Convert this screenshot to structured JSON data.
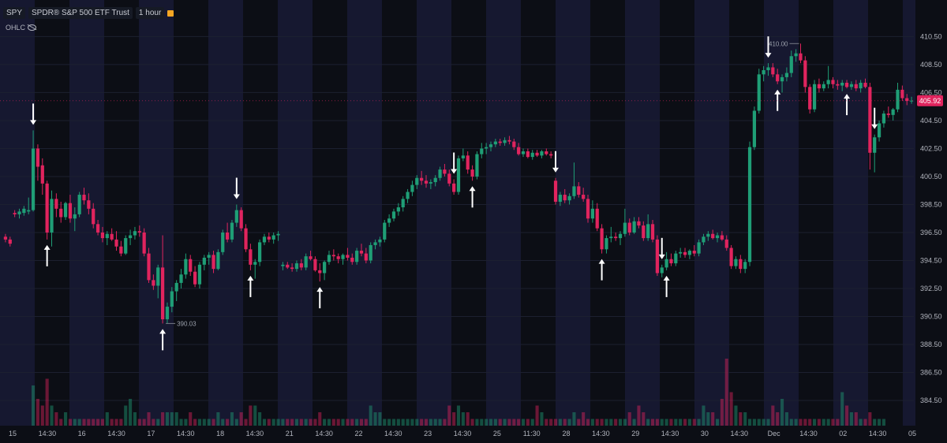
{
  "header": {
    "symbol": "SPY",
    "name": "SPDR® S&P 500 ETF Trust",
    "interval": "1 hour",
    "indicator": "OHLC"
  },
  "chart_data": {
    "type": "candlestick",
    "ylim": [
      382.7,
      412.1
    ],
    "y_ticks": [
      410.5,
      408.5,
      406.5,
      404.5,
      402.5,
      400.5,
      398.5,
      396.5,
      394.5,
      392.5,
      390.5,
      388.5,
      386.5,
      384.5
    ],
    "x_ticks": [
      "15",
      "14:30",
      "16",
      "14:30",
      "17",
      "14:30",
      "18",
      "14:30",
      "21",
      "14:30",
      "22",
      "14:30",
      "23",
      "14:30",
      "25",
      "11:30",
      "28",
      "14:30",
      "29",
      "14:30",
      "30",
      "14:30",
      "Dec",
      "14:30",
      "02",
      "14:30",
      "05"
    ],
    "last_price": "405.92",
    "high_label": "410.00",
    "low_label": "390.03",
    "colors": {
      "up": "#1f9e76",
      "down": "#e0245e",
      "bg": "#0c0e15",
      "session": "#1a1c3a",
      "arrow": "#ffffff",
      "price_tag": "#e0245e"
    },
    "candles": [
      [
        396.2,
        396.4,
        395.8,
        396.0
      ],
      [
        396.0,
        396.2,
        395.5,
        395.7
      ],
      [
        397.9,
        398.1,
        397.6,
        397.8
      ],
      [
        397.8,
        398.2,
        397.5,
        398.0
      ],
      [
        397.9,
        398.4,
        397.7,
        398.2
      ],
      [
        398.0,
        399.0,
        397.8,
        398.1
      ],
      [
        398.1,
        403.8,
        398.0,
        402.5
      ],
      [
        402.5,
        402.8,
        400.2,
        401.2
      ],
      [
        401.3,
        401.8,
        399.2,
        400.0
      ],
      [
        400.0,
        400.2,
        396.0,
        396.5
      ],
      [
        396.5,
        399.5,
        395.5,
        398.9
      ],
      [
        398.9,
        399.3,
        397.6,
        398.2
      ],
      [
        398.2,
        398.7,
        397.2,
        397.6
      ],
      [
        397.6,
        398.7,
        397.4,
        398.6
      ],
      [
        398.6,
        399.2,
        397.2,
        397.5
      ],
      [
        397.5,
        398.3,
        396.6,
        397.8
      ],
      [
        397.8,
        399.4,
        397.6,
        399.2
      ],
      [
        399.2,
        399.7,
        398.5,
        398.8
      ],
      [
        398.8,
        399.3,
        397.8,
        398.2
      ],
      [
        398.2,
        398.6,
        396.8,
        397.1
      ],
      [
        397.1,
        397.4,
        396.3,
        396.5
      ],
      [
        396.5,
        396.9,
        395.8,
        396.1
      ],
      [
        396.1,
        396.6,
        395.6,
        396.4
      ],
      [
        396.4,
        396.8,
        395.9,
        396.0
      ],
      [
        396.0,
        396.6,
        395.2,
        395.5
      ],
      [
        395.5,
        395.9,
        394.8,
        395.0
      ],
      [
        395.0,
        396.3,
        394.9,
        396.1
      ],
      [
        396.1,
        396.7,
        395.6,
        396.3
      ],
      [
        396.3,
        396.9,
        396.0,
        396.6
      ],
      [
        396.6,
        397.0,
        396.2,
        396.5
      ],
      [
        396.5,
        396.8,
        394.8,
        395.0
      ],
      [
        395.0,
        395.4,
        392.9,
        393.1
      ],
      [
        393.1,
        393.5,
        392.4,
        392.7
      ],
      [
        392.7,
        394.2,
        391.8,
        394.0
      ],
      [
        394.0,
        396.3,
        390.0,
        390.3
      ],
      [
        390.3,
        391.5,
        390.0,
        391.2
      ],
      [
        391.2,
        392.6,
        390.8,
        392.3
      ],
      [
        392.3,
        393.1,
        391.6,
        392.9
      ],
      [
        392.9,
        393.9,
        392.5,
        393.5
      ],
      [
        393.5,
        395.0,
        393.2,
        394.6
      ],
      [
        394.6,
        394.9,
        393.4,
        393.7
      ],
      [
        393.7,
        394.1,
        392.6,
        392.8
      ],
      [
        392.8,
        394.4,
        392.5,
        394.2
      ],
      [
        394.2,
        394.9,
        393.8,
        394.7
      ],
      [
        394.7,
        395.1,
        394.2,
        394.9
      ],
      [
        394.9,
        395.2,
        393.6,
        393.9
      ],
      [
        393.9,
        395.3,
        393.8,
        395.1
      ],
      [
        395.1,
        396.7,
        394.9,
        396.5
      ],
      [
        396.5,
        397.2,
        395.8,
        396.0
      ],
      [
        396.0,
        397.4,
        395.8,
        397.2
      ],
      [
        397.2,
        398.5,
        396.9,
        398.1
      ],
      [
        398.1,
        398.3,
        396.6,
        396.8
      ],
      [
        396.8,
        397.1,
        395.1,
        395.3
      ],
      [
        395.3,
        395.7,
        393.8,
        394.2
      ],
      [
        394.2,
        394.6,
        393.2,
        394.4
      ],
      [
        394.4,
        396.0,
        394.1,
        395.8
      ],
      [
        395.8,
        396.4,
        395.6,
        396.2
      ],
      [
        396.2,
        396.5,
        395.8,
        396.0
      ],
      [
        396.0,
        396.5,
        395.7,
        396.3
      ],
      [
        396.3,
        396.6,
        395.9,
        396.4
      ],
      [
        394.1,
        394.4,
        393.8,
        394.2
      ],
      [
        394.2,
        394.4,
        393.9,
        394.0
      ],
      [
        394.0,
        394.3,
        393.7,
        393.9
      ],
      [
        393.9,
        394.5,
        393.7,
        394.3
      ],
      [
        394.3,
        394.6,
        393.8,
        394.0
      ],
      [
        394.0,
        395.0,
        393.8,
        394.8
      ],
      [
        394.8,
        395.2,
        394.5,
        394.6
      ],
      [
        394.6,
        394.8,
        393.7,
        393.8
      ],
      [
        393.8,
        394.3,
        393.0,
        393.6
      ],
      [
        393.6,
        394.5,
        393.1,
        394.4
      ],
      [
        394.4,
        395.2,
        394.2,
        394.9
      ],
      [
        394.9,
        395.3,
        394.5,
        394.8
      ],
      [
        394.8,
        395.0,
        394.3,
        394.6
      ],
      [
        394.6,
        395.0,
        394.2,
        394.9
      ],
      [
        394.9,
        395.4,
        394.5,
        394.7
      ],
      [
        394.7,
        395.0,
        394.2,
        394.4
      ],
      [
        394.4,
        395.4,
        394.2,
        395.2
      ],
      [
        395.2,
        395.7,
        394.8,
        395.0
      ],
      [
        395.0,
        395.4,
        394.3,
        394.5
      ],
      [
        394.5,
        395.8,
        394.3,
        395.6
      ],
      [
        395.6,
        396.0,
        395.3,
        395.8
      ],
      [
        395.8,
        396.2,
        395.5,
        396.0
      ],
      [
        396.0,
        397.4,
        395.8,
        397.2
      ],
      [
        397.2,
        397.8,
        396.9,
        397.5
      ],
      [
        397.5,
        398.2,
        397.3,
        398.0
      ],
      [
        398.0,
        398.6,
        397.7,
        398.3
      ],
      [
        398.3,
        399.1,
        398.0,
        398.9
      ],
      [
        398.9,
        399.6,
        398.6,
        399.4
      ],
      [
        399.4,
        400.2,
        399.1,
        399.9
      ],
      [
        399.9,
        400.6,
        399.6,
        400.4
      ],
      [
        400.4,
        400.9,
        399.9,
        400.2
      ],
      [
        400.2,
        400.6,
        399.7,
        400.0
      ],
      [
        400.0,
        400.3,
        399.6,
        400.1
      ],
      [
        400.1,
        400.6,
        399.8,
        400.4
      ],
      [
        400.4,
        401.2,
        400.2,
        401.0
      ],
      [
        401.0,
        401.4,
        400.5,
        400.7
      ],
      [
        400.7,
        401.0,
        399.8,
        400.0
      ],
      [
        400.0,
        400.3,
        399.2,
        399.4
      ],
      [
        399.4,
        402.0,
        399.2,
        401.8
      ],
      [
        401.8,
        402.5,
        401.6,
        402.0
      ],
      [
        402.0,
        402.3,
        400.7,
        401.0
      ],
      [
        401.0,
        401.3,
        400.2,
        400.5
      ],
      [
        400.5,
        402.3,
        400.3,
        402.1
      ],
      [
        402.1,
        402.9,
        401.8,
        402.5
      ],
      [
        402.5,
        402.9,
        402.1,
        402.6
      ],
      [
        402.6,
        403.0,
        402.3,
        402.8
      ],
      [
        402.8,
        403.2,
        402.6,
        403.0
      ],
      [
        403.0,
        403.2,
        402.7,
        402.9
      ],
      [
        402.9,
        403.3,
        402.7,
        403.1
      ],
      [
        403.1,
        403.4,
        402.8,
        403.0
      ],
      [
        403.0,
        403.2,
        402.4,
        402.6
      ],
      [
        402.6,
        402.9,
        402.0,
        402.1
      ],
      [
        402.1,
        402.5,
        401.9,
        402.3
      ],
      [
        402.3,
        402.5,
        401.8,
        401.9
      ],
      [
        401.9,
        402.4,
        401.7,
        402.2
      ],
      [
        402.2,
        402.4,
        401.9,
        402.0
      ],
      [
        402.0,
        402.4,
        401.8,
        402.3
      ],
      [
        402.3,
        402.5,
        402.0,
        402.1
      ],
      [
        402.1,
        402.3,
        401.8,
        402.0
      ],
      [
        400.2,
        400.4,
        398.5,
        398.7
      ],
      [
        398.7,
        399.4,
        398.4,
        399.2
      ],
      [
        399.2,
        399.6,
        398.6,
        398.8
      ],
      [
        398.8,
        399.3,
        398.5,
        399.1
      ],
      [
        399.1,
        401.5,
        398.9,
        399.8
      ],
      [
        399.8,
        400.1,
        399.0,
        399.2
      ],
      [
        399.2,
        399.7,
        398.7,
        398.9
      ],
      [
        398.9,
        399.2,
        397.2,
        397.5
      ],
      [
        397.5,
        398.8,
        397.2,
        398.2
      ],
      [
        398.2,
        398.6,
        396.6,
        396.8
      ],
      [
        396.8,
        397.1,
        395.0,
        395.3
      ],
      [
        395.3,
        396.3,
        395.0,
        396.1
      ],
      [
        396.1,
        396.9,
        395.8,
        396.2
      ],
      [
        396.2,
        396.5,
        395.9,
        396.1
      ],
      [
        396.1,
        396.6,
        395.6,
        396.4
      ],
      [
        396.4,
        398.2,
        396.2,
        397.2
      ],
      [
        397.2,
        397.5,
        396.3,
        396.5
      ],
      [
        396.5,
        397.6,
        396.4,
        397.3
      ],
      [
        397.3,
        397.6,
        396.8,
        397.0
      ],
      [
        397.0,
        397.3,
        395.9,
        396.1
      ],
      [
        396.1,
        397.8,
        395.9,
        397.1
      ],
      [
        397.1,
        397.4,
        395.8,
        396.0
      ],
      [
        396.0,
        396.3,
        393.4,
        393.6
      ],
      [
        393.6,
        394.2,
        393.3,
        394.0
      ],
      [
        394.0,
        395.1,
        393.8,
        394.6
      ],
      [
        394.6,
        395.0,
        394.1,
        394.3
      ],
      [
        394.3,
        395.2,
        394.1,
        395.0
      ],
      [
        395.0,
        395.4,
        394.7,
        395.1
      ],
      [
        395.1,
        395.4,
        394.7,
        394.9
      ],
      [
        394.9,
        395.3,
        394.6,
        395.2
      ],
      [
        395.2,
        395.6,
        394.8,
        395.0
      ],
      [
        395.0,
        396.0,
        394.8,
        395.8
      ],
      [
        395.8,
        396.4,
        395.6,
        396.2
      ],
      [
        396.2,
        396.6,
        395.9,
        396.4
      ],
      [
        396.4,
        396.7,
        396.0,
        396.1
      ],
      [
        396.1,
        396.5,
        395.8,
        396.3
      ],
      [
        396.3,
        396.6,
        395.9,
        396.0
      ],
      [
        396.0,
        396.3,
        395.2,
        395.4
      ],
      [
        395.4,
        395.6,
        393.9,
        394.1
      ],
      [
        394.1,
        394.8,
        393.9,
        394.6
      ],
      [
        394.6,
        394.9,
        393.6,
        393.9
      ],
      [
        393.9,
        394.6,
        393.6,
        394.4
      ],
      [
        394.4,
        403.0,
        394.1,
        402.6
      ],
      [
        402.6,
        405.5,
        402.4,
        405.2
      ],
      [
        405.2,
        408.2,
        405.0,
        407.8
      ],
      [
        407.8,
        408.4,
        407.3,
        408.1
      ],
      [
        408.1,
        408.6,
        407.7,
        408.3
      ],
      [
        408.3,
        408.6,
        407.6,
        407.8
      ],
      [
        407.8,
        408.2,
        407.1,
        407.3
      ],
      [
        407.3,
        407.8,
        406.5,
        407.6
      ],
      [
        407.6,
        408.3,
        407.3,
        407.9
      ],
      [
        407.9,
        409.5,
        407.6,
        409.1
      ],
      [
        409.1,
        409.6,
        408.7,
        409.3
      ],
      [
        409.3,
        410.0,
        408.6,
        408.8
      ],
      [
        408.8,
        409.1,
        406.5,
        406.9
      ],
      [
        406.9,
        407.1,
        405.0,
        405.3
      ],
      [
        405.3,
        407.4,
        405.1,
        407.1
      ],
      [
        407.1,
        407.5,
        406.5,
        406.8
      ],
      [
        406.8,
        407.3,
        406.6,
        407.1
      ],
      [
        407.1,
        408.4,
        406.8,
        407.4
      ],
      [
        407.4,
        407.6,
        406.8,
        407.1
      ],
      [
        407.1,
        407.4,
        406.7,
        407.0
      ],
      [
        407.0,
        407.4,
        406.6,
        407.2
      ],
      [
        407.2,
        407.4,
        406.8,
        406.9
      ],
      [
        406.9,
        407.3,
        406.7,
        407.1
      ],
      [
        407.1,
        407.4,
        406.6,
        406.8
      ],
      [
        406.8,
        407.4,
        406.5,
        407.2
      ],
      [
        407.2,
        407.5,
        406.8,
        406.9
      ],
      [
        406.9,
        407.2,
        401.0,
        402.2
      ],
      [
        402.2,
        403.5,
        400.8,
        403.3
      ],
      [
        403.3,
        404.5,
        403.0,
        404.3
      ],
      [
        404.3,
        405.2,
        404.0,
        405.0
      ],
      [
        405.0,
        405.5,
        404.7,
        404.9
      ],
      [
        404.9,
        405.4,
        404.5,
        405.3
      ],
      [
        405.3,
        407.2,
        405.1,
        406.7
      ],
      [
        406.7,
        407.0,
        405.9,
        406.1
      ],
      [
        406.1,
        406.4,
        405.6,
        405.9
      ],
      [
        405.9,
        406.2,
        405.7,
        405.92
      ]
    ],
    "volume": [
      0,
      0,
      0,
      0,
      0,
      0,
      6,
      4,
      3,
      7,
      3,
      2,
      1,
      2,
      1,
      1,
      1,
      1,
      1,
      1,
      1,
      1,
      2,
      1,
      1,
      1,
      3,
      4,
      2,
      1,
      1,
      2,
      1,
      1,
      2,
      2,
      2,
      2,
      1,
      1,
      2,
      1,
      1,
      1,
      1,
      1,
      2,
      1,
      1,
      2,
      1,
      2,
      1,
      3,
      3,
      2,
      1,
      1,
      1,
      1,
      1,
      1,
      1,
      1,
      1,
      1,
      1,
      1,
      2,
      1,
      1,
      1,
      1,
      1,
      1,
      1,
      1,
      1,
      1,
      3,
      2,
      2,
      1,
      1,
      1,
      1,
      1,
      1,
      1,
      1,
      1,
      1,
      1,
      1,
      1,
      1,
      3,
      2,
      3,
      2,
      2,
      1,
      1,
      1,
      1,
      1,
      1,
      1,
      1,
      1,
      1,
      1,
      1,
      1,
      1,
      3,
      2,
      1,
      1,
      1,
      1,
      1,
      1,
      2,
      1,
      2,
      1,
      1,
      1,
      1,
      1,
      1,
      1,
      1,
      1,
      2,
      1,
      3,
      2,
      1,
      1,
      1,
      1,
      1,
      1,
      1,
      1,
      1,
      1,
      1,
      1,
      3,
      2,
      2,
      1,
      4,
      10,
      5,
      3,
      2,
      2,
      1,
      1,
      1,
      1,
      1,
      3,
      2,
      4,
      2,
      1,
      1,
      1,
      1,
      1,
      1,
      1,
      1,
      1,
      1,
      1,
      5,
      3,
      2,
      2,
      1,
      1,
      2,
      1,
      1,
      1
    ],
    "arrows": [
      {
        "index": 6,
        "dir": "down"
      },
      {
        "index": 9,
        "dir": "up"
      },
      {
        "index": 34,
        "dir": "up"
      },
      {
        "index": 50,
        "dir": "down"
      },
      {
        "index": 53,
        "dir": "up"
      },
      {
        "index": 68,
        "dir": "up"
      },
      {
        "index": 97,
        "dir": "down"
      },
      {
        "index": 101,
        "dir": "up"
      },
      {
        "index": 119,
        "dir": "down"
      },
      {
        "index": 129,
        "dir": "up"
      },
      {
        "index": 142,
        "dir": "down"
      },
      {
        "index": 143,
        "dir": "up"
      },
      {
        "index": 165,
        "dir": "down"
      },
      {
        "index": 167,
        "dir": "up"
      },
      {
        "index": 182,
        "dir": "up"
      },
      {
        "index": 188,
        "dir": "down"
      }
    ]
  }
}
